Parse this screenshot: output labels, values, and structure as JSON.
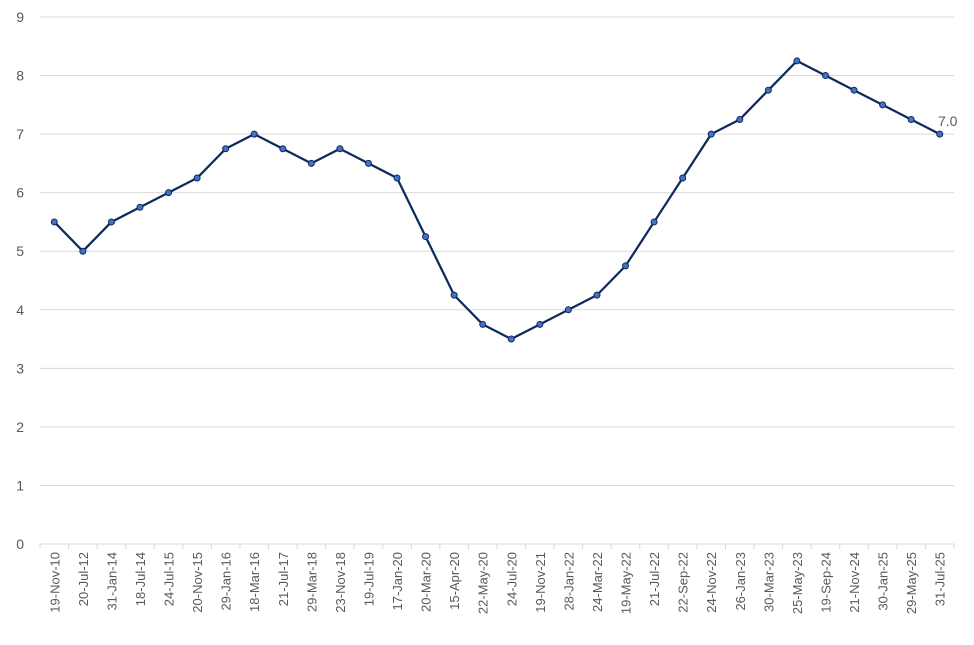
{
  "chart_data": {
    "type": "line",
    "title": "",
    "xlabel": "",
    "ylabel": "",
    "ylim": [
      0,
      9
    ],
    "yticks": [
      "0",
      "1",
      "2",
      "3",
      "4",
      "5",
      "6",
      "7",
      "8",
      "9"
    ],
    "grid": true,
    "legend": "none",
    "line_color": "#0e2a5c",
    "marker_color": "#4472c4",
    "categories": [
      "19-Nov-10",
      "20-Jul-12",
      "31-Jan-14",
      "18-Jul-14",
      "24-Jul-15",
      "20-Nov-15",
      "29-Jan-16",
      "18-Mar-16",
      "21-Jul-17",
      "29-Mar-18",
      "23-Nov-18",
      "19-Jul-19",
      "17-Jan-20",
      "20-Mar-20",
      "15-Apr-20",
      "22-May-20",
      "24-Jul-20",
      "19-Nov-21",
      "28-Jan-22",
      "24-Mar-22",
      "19-May-22",
      "21-Jul-22",
      "22-Sep-22",
      "24-Nov-22",
      "26-Jan-23",
      "30-Mar-23",
      "25-May-23",
      "19-Sep-24",
      "21-Nov-24",
      "30-Jan-25",
      "29-May-25",
      "31-Jul-25"
    ],
    "series": [
      {
        "values": [
          5.5,
          5.0,
          5.5,
          5.75,
          6.0,
          6.25,
          6.75,
          7.0,
          6.75,
          6.5,
          6.75,
          6.5,
          6.25,
          5.25,
          4.25,
          3.75,
          3.5,
          3.75,
          4.0,
          4.25,
          4.75,
          5.5,
          6.25,
          7.0,
          7.25,
          7.75,
          8.25,
          8.0,
          7.75,
          7.5,
          7.25,
          7.0
        ]
      }
    ],
    "annotations": [
      {
        "index": 31,
        "label": "7.0"
      }
    ]
  }
}
